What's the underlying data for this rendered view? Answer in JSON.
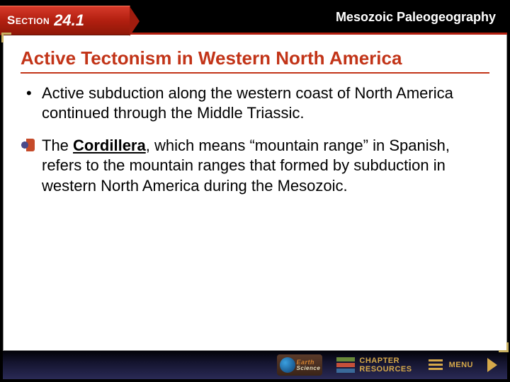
{
  "header": {
    "section_word": "Section",
    "section_number": "24.1",
    "topic": "Mesozoic Paleogeography"
  },
  "slide": {
    "title": "Active Tectonism in Western North America",
    "bullets": [
      {
        "type": "dot",
        "text": "Active subduction along the western coast of North America continued through the Middle Triassic."
      },
      {
        "type": "audio",
        "prefix": "The ",
        "term": "Cordillera",
        "suffix": ", which means “mountain range” in Spanish, refers to the mountain ranges that formed by subduction in western North America during the Mesozoic."
      }
    ]
  },
  "footer": {
    "earth_l1": "Earth",
    "earth_l2": "Science",
    "online": "Online",
    "chapter": "CHAPTER",
    "resources": "RESOURCES",
    "menu": "MENU"
  },
  "colors": {
    "accent_red": "#c23418",
    "tab_red": "#b21f10",
    "gold": "#d5a84a",
    "navy": "#1a1a40",
    "text": "#000000",
    "bg": "#ffffff"
  }
}
